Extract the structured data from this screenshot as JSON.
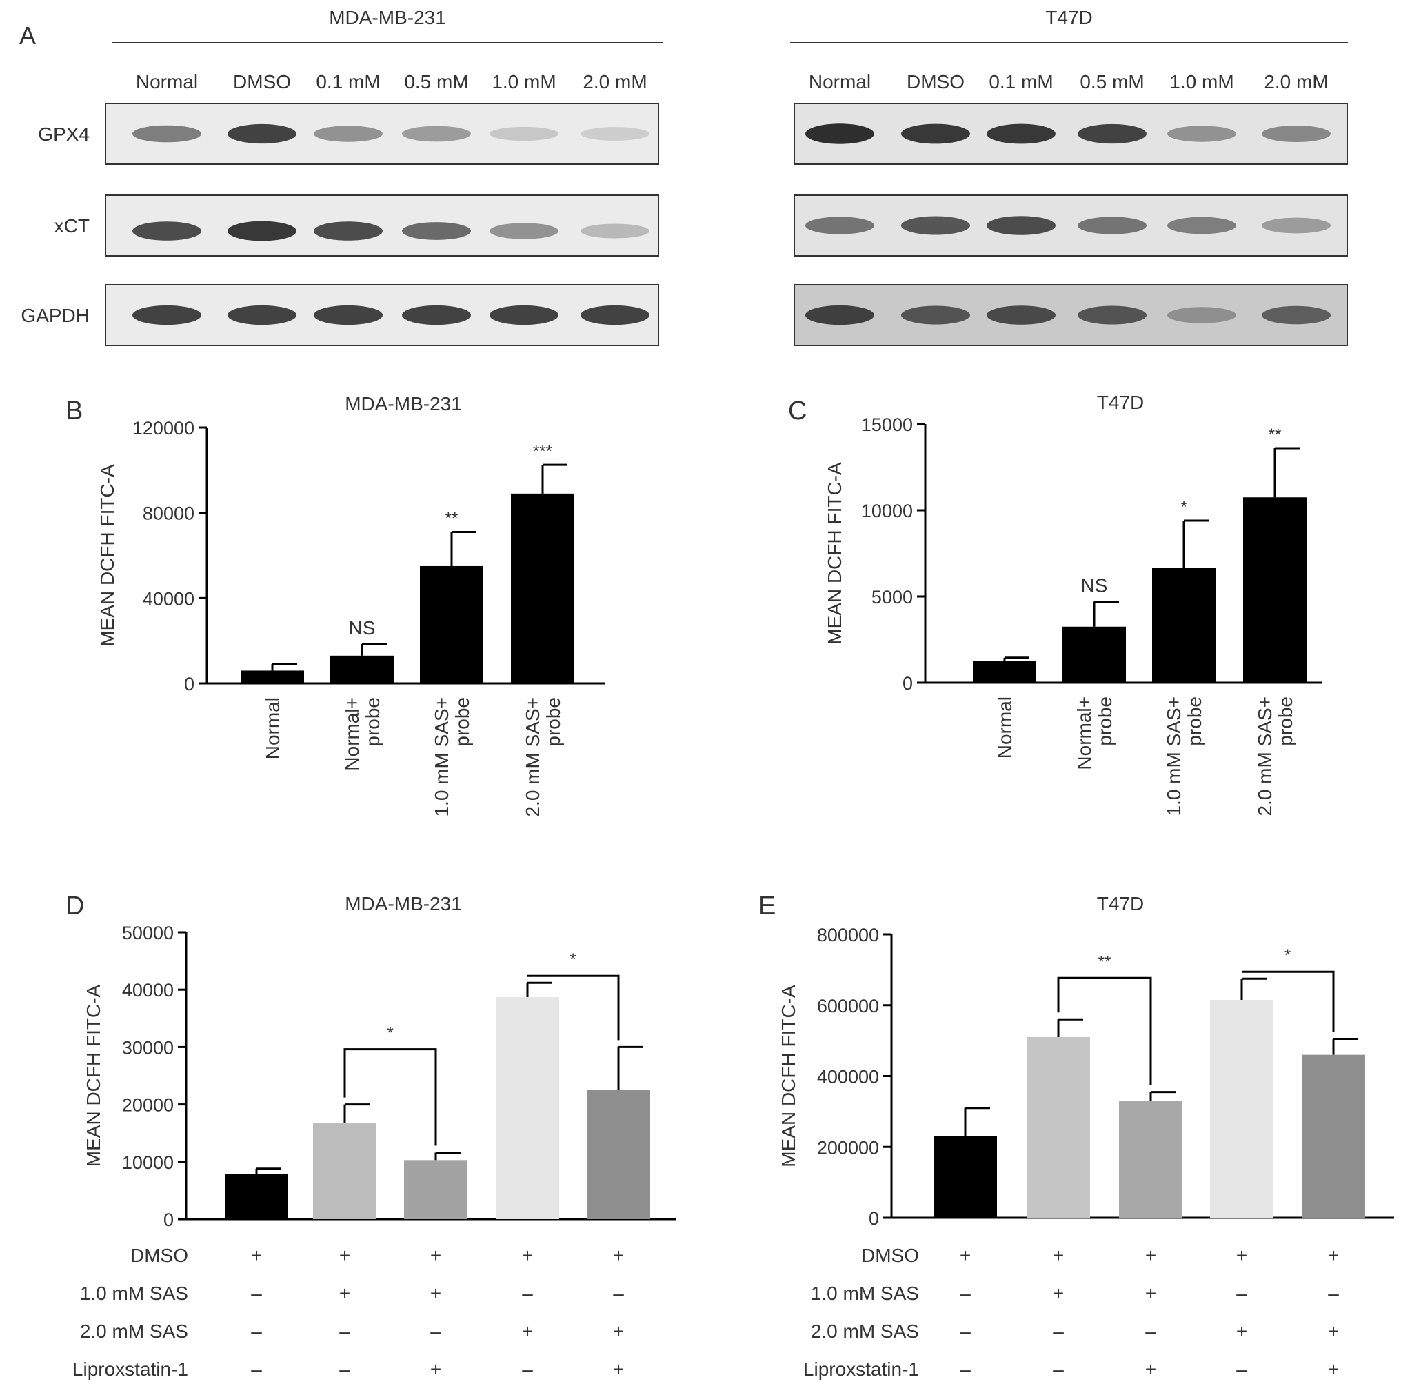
{
  "panel_a": {
    "letter": "A",
    "blots": [
      {
        "cell_line": "MDA-MB-231",
        "lanes": [
          "Normal",
          "DMSO",
          "0.1 mM",
          "0.5 mM",
          "1.0 mM",
          "2.0 mM"
        ],
        "rows": [
          {
            "label": "GPX4",
            "intensity": [
              0.55,
              0.85,
              0.45,
              0.4,
              0.18,
              0.15
            ]
          },
          {
            "label": "xCT",
            "intensity": [
              0.8,
              0.9,
              0.8,
              0.65,
              0.45,
              0.25
            ]
          },
          {
            "label": "GAPDH",
            "intensity": [
              0.85,
              0.85,
              0.85,
              0.85,
              0.85,
              0.85
            ]
          }
        ]
      },
      {
        "cell_line": "T47D",
        "lanes": [
          "Normal",
          "DMSO",
          "0.1 mM",
          "0.5 mM",
          "1.0 mM",
          "2.0 mM"
        ],
        "rows": [
          {
            "label": "GPX4",
            "intensity": [
              0.95,
              0.9,
              0.9,
              0.85,
              0.45,
              0.5
            ]
          },
          {
            "label": "xCT",
            "intensity": [
              0.6,
              0.75,
              0.8,
              0.6,
              0.55,
              0.4
            ]
          },
          {
            "label": "GAPDH",
            "intensity": [
              0.85,
              0.75,
              0.8,
              0.75,
              0.45,
              0.7
            ]
          }
        ]
      }
    ]
  },
  "chart_data": [
    {
      "panel": "B",
      "type": "bar",
      "title": "MDA-MB-231",
      "ylabel": "MEAN DCFH FITC-A",
      "xlabel": "",
      "ylim": [
        0,
        120000
      ],
      "yticks": [
        0,
        40000,
        80000,
        120000
      ],
      "categories": [
        "Normal",
        "Normal+\nprobe",
        "1.0 mM SAS+\nprobe",
        "2.0 mM SAS+\nprobe"
      ],
      "values": [
        6000,
        13000,
        55000,
        89000
      ],
      "errors": [
        3000,
        5500,
        16000,
        13500
      ],
      "bar_colors": [
        "#000000",
        "#000000",
        "#000000",
        "#000000"
      ],
      "annotations": [
        "",
        "NS",
        "**",
        "***"
      ]
    },
    {
      "panel": "C",
      "type": "bar",
      "title": "T47D",
      "ylabel": "MEAN DCFH FITC-A",
      "xlabel": "",
      "ylim": [
        0,
        15000
      ],
      "yticks": [
        0,
        5000,
        10000,
        15000
      ],
      "categories": [
        "Normal",
        "Normal+\nprobe",
        "1.0 mM SAS+\nprobe",
        "2.0 mM SAS+\nprobe"
      ],
      "values": [
        1250,
        3250,
        6650,
        10750
      ],
      "errors": [
        200,
        1450,
        2750,
        2850
      ],
      "bar_colors": [
        "#000000",
        "#000000",
        "#000000",
        "#000000"
      ],
      "annotations": [
        "",
        "NS",
        "*",
        "**"
      ]
    },
    {
      "panel": "D",
      "type": "bar",
      "title": "MDA-MB-231",
      "ylabel": "MEAN DCFH FITC-A",
      "xlabel": "",
      "ylim": [
        0,
        50000
      ],
      "yticks": [
        0,
        10000,
        20000,
        30000,
        40000,
        50000
      ],
      "values": [
        7900,
        16700,
        10300,
        38700,
        22500
      ],
      "errors": [
        900,
        3300,
        1300,
        2500,
        7500
      ],
      "bar_colors": [
        "#000000",
        "#bcbcbc",
        "#a3a3a3",
        "#e6e6e6",
        "#8f8f8f"
      ],
      "comparisons": [
        {
          "from": 1,
          "to": 2,
          "label": "*"
        },
        {
          "from": 3,
          "to": 4,
          "label": "*"
        }
      ],
      "conditions": [
        {
          "label": "DMSO",
          "marks": [
            "+",
            "+",
            "+",
            "+",
            "+"
          ]
        },
        {
          "label": "1.0 mM SAS",
          "marks": [
            "–",
            "+",
            "+",
            "–",
            "–"
          ]
        },
        {
          "label": "2.0 mM SAS",
          "marks": [
            "–",
            "–",
            "–",
            "+",
            "+"
          ]
        },
        {
          "label": "Liproxstatin-1",
          "marks": [
            "–",
            "–",
            "+",
            "–",
            "+"
          ]
        }
      ]
    },
    {
      "panel": "E",
      "type": "bar",
      "title": "T47D",
      "ylabel": "MEAN DCFH FITC-A",
      "xlabel": "",
      "ylim": [
        0,
        800000
      ],
      "yticks": [
        0,
        200000,
        400000,
        600000,
        800000
      ],
      "values": [
        230000,
        510000,
        330000,
        615000,
        460000
      ],
      "errors": [
        80000,
        50000,
        25000,
        60000,
        45000
      ],
      "bar_colors": [
        "#000000",
        "#c5c5c5",
        "#a8a8a8",
        "#e6e6e6",
        "#8f8f8f"
      ],
      "comparisons": [
        {
          "from": 1,
          "to": 2,
          "label": "**"
        },
        {
          "from": 3,
          "to": 4,
          "label": "*"
        }
      ],
      "conditions": [
        {
          "label": "DMSO",
          "marks": [
            "+",
            "+",
            "+",
            "+",
            "+"
          ]
        },
        {
          "label": "1.0 mM SAS",
          "marks": [
            "–",
            "+",
            "+",
            "–",
            "–"
          ]
        },
        {
          "label": "2.0 mM SAS",
          "marks": [
            "–",
            "–",
            "–",
            "+",
            "+"
          ]
        },
        {
          "label": "Liproxstatin-1",
          "marks": [
            "–",
            "–",
            "+",
            "–",
            "+"
          ]
        }
      ]
    }
  ]
}
